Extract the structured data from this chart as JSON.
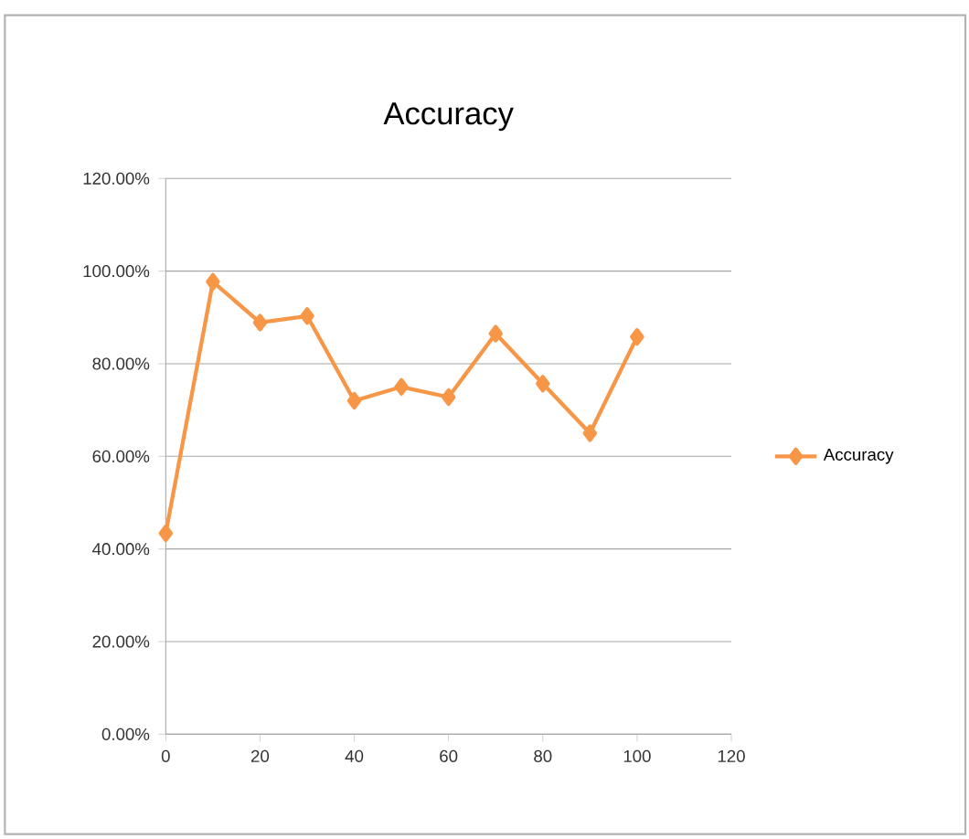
{
  "chart_data": {
    "type": "line",
    "title": "Accuracy",
    "x": [
      0,
      10,
      20,
      30,
      40,
      50,
      60,
      70,
      80,
      90,
      100
    ],
    "series": [
      {
        "name": "Accuracy",
        "color": "#f79646",
        "values": [
          43.4,
          97.7,
          88.9,
          90.3,
          72,
          75,
          72.8,
          86.5,
          75.7,
          65,
          85.8
        ]
      }
    ],
    "xlim": [
      0,
      120
    ],
    "xticks": [
      0,
      20,
      40,
      60,
      80,
      100,
      120
    ],
    "ylim": [
      0,
      120
    ],
    "yticks": [
      {
        "value": 0,
        "label": "0.00%"
      },
      {
        "value": 20,
        "label": "20.00%"
      },
      {
        "value": 40,
        "label": "40.00%"
      },
      {
        "value": 60,
        "label": "60.00%"
      },
      {
        "value": 80,
        "label": "80.00%"
      },
      {
        "value": 100,
        "label": "100.00%"
      },
      {
        "value": 120,
        "label": "120.00%"
      }
    ],
    "grid": "y",
    "legend": "right",
    "marker": "diamond",
    "line_style": "solid"
  }
}
